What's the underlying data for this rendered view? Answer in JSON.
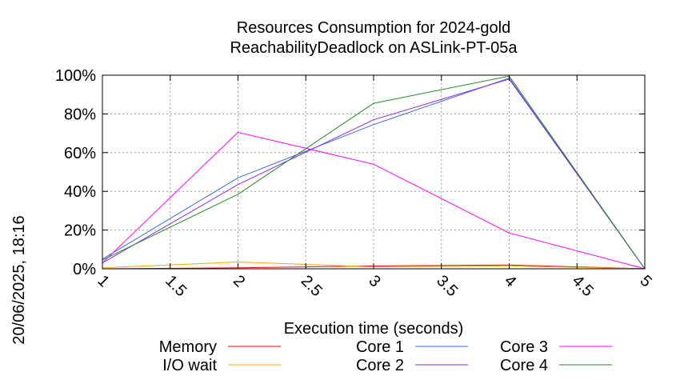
{
  "chart_data": {
    "type": "line",
    "title_line1": "Resources Consumption for 2024-gold",
    "title_line2": "ReachabilityDeadlock on ASLink-PT-05a",
    "xlabel": "Execution time (seconds)",
    "ylabel": "",
    "side_label": "20/06/2025, 18:16",
    "xlim": [
      1,
      5
    ],
    "ylim": [
      0,
      100
    ],
    "x_ticks": [
      "1",
      "1.5",
      "2",
      "2.5",
      "3",
      "3.5",
      "4",
      "4.5",
      "5"
    ],
    "y_ticks": [
      "0%",
      "20%",
      "40%",
      "60%",
      "80%",
      "100%"
    ],
    "grid": true,
    "legend_position": "bottom",
    "x": [
      1,
      2,
      3,
      4,
      5
    ],
    "series": [
      {
        "name": "Memory",
        "color": "#ff0000",
        "values": [
          0,
          0.5,
          1.5,
          2,
          0
        ]
      },
      {
        "name": "I/O wait",
        "color": "#ffa500",
        "values": [
          0.5,
          3.5,
          1,
          1.5,
          0
        ]
      },
      {
        "name": "Core 1",
        "color": "#4169e1",
        "values": [
          5,
          47,
          74.5,
          98.5,
          0
        ]
      },
      {
        "name": "Core 2",
        "color": "#8a2be2",
        "values": [
          3,
          43.5,
          77,
          98,
          0
        ]
      },
      {
        "name": "Core 3",
        "color": "#ff00ff",
        "values": [
          3,
          70.5,
          54,
          18.5,
          0
        ]
      },
      {
        "name": "Core 4",
        "color": "#228b22",
        "values": [
          4.5,
          38.5,
          85.5,
          99.5,
          0
        ]
      }
    ]
  }
}
